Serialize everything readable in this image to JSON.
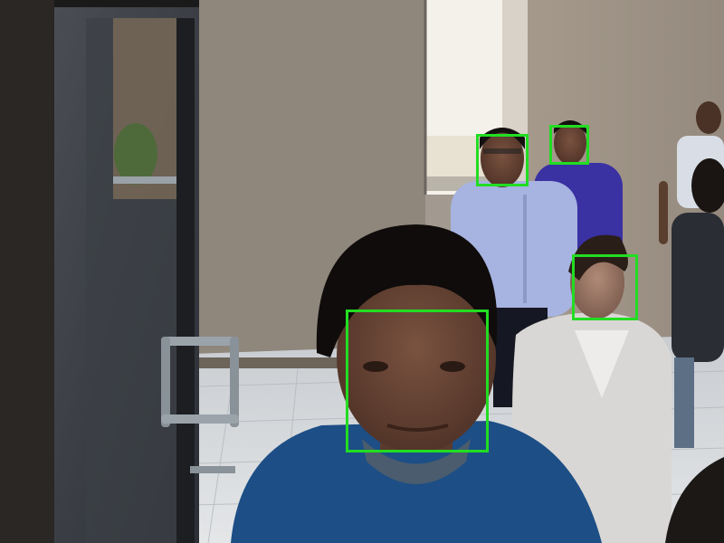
{
  "scene": {
    "description_free": true,
    "box_color": "#22dd22"
  },
  "detections": [
    {
      "label": "face-1"
    },
    {
      "label": "face-2"
    },
    {
      "label": "face-3"
    },
    {
      "label": "face-4"
    }
  ]
}
